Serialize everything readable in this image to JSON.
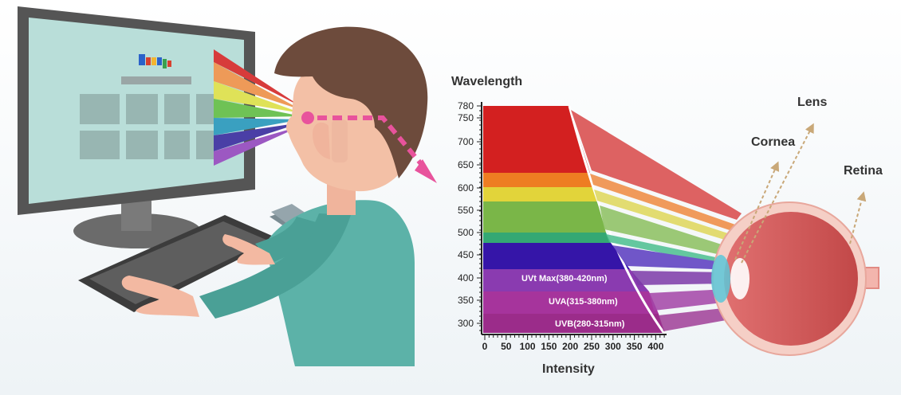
{
  "diagram": {
    "y_axis": {
      "title": "Wavelength",
      "ticks": [
        780,
        750,
        700,
        650,
        600,
        550,
        500,
        450,
        400,
        350,
        300
      ]
    },
    "x_axis": {
      "title": "Intensity",
      "ticks": [
        0,
        50,
        100,
        150,
        200,
        250,
        300,
        350,
        400
      ]
    },
    "uv_bands": [
      {
        "label": "UVt Max(380-420nm)",
        "color": "#8a3bb0"
      },
      {
        "label": "UVA(315-380nm)",
        "color": "#a6349c"
      },
      {
        "label": "UVB(280-315nm)",
        "color": "#9b2c8a"
      }
    ],
    "visible_bands": [
      "#d32020",
      "#ee7d22",
      "#e2d43a",
      "#7ab648",
      "#34a874",
      "#3515a8"
    ],
    "eye_parts": [
      "Lens",
      "Cornea",
      "Retina"
    ],
    "accent_arrow_color": "#e8539c"
  }
}
